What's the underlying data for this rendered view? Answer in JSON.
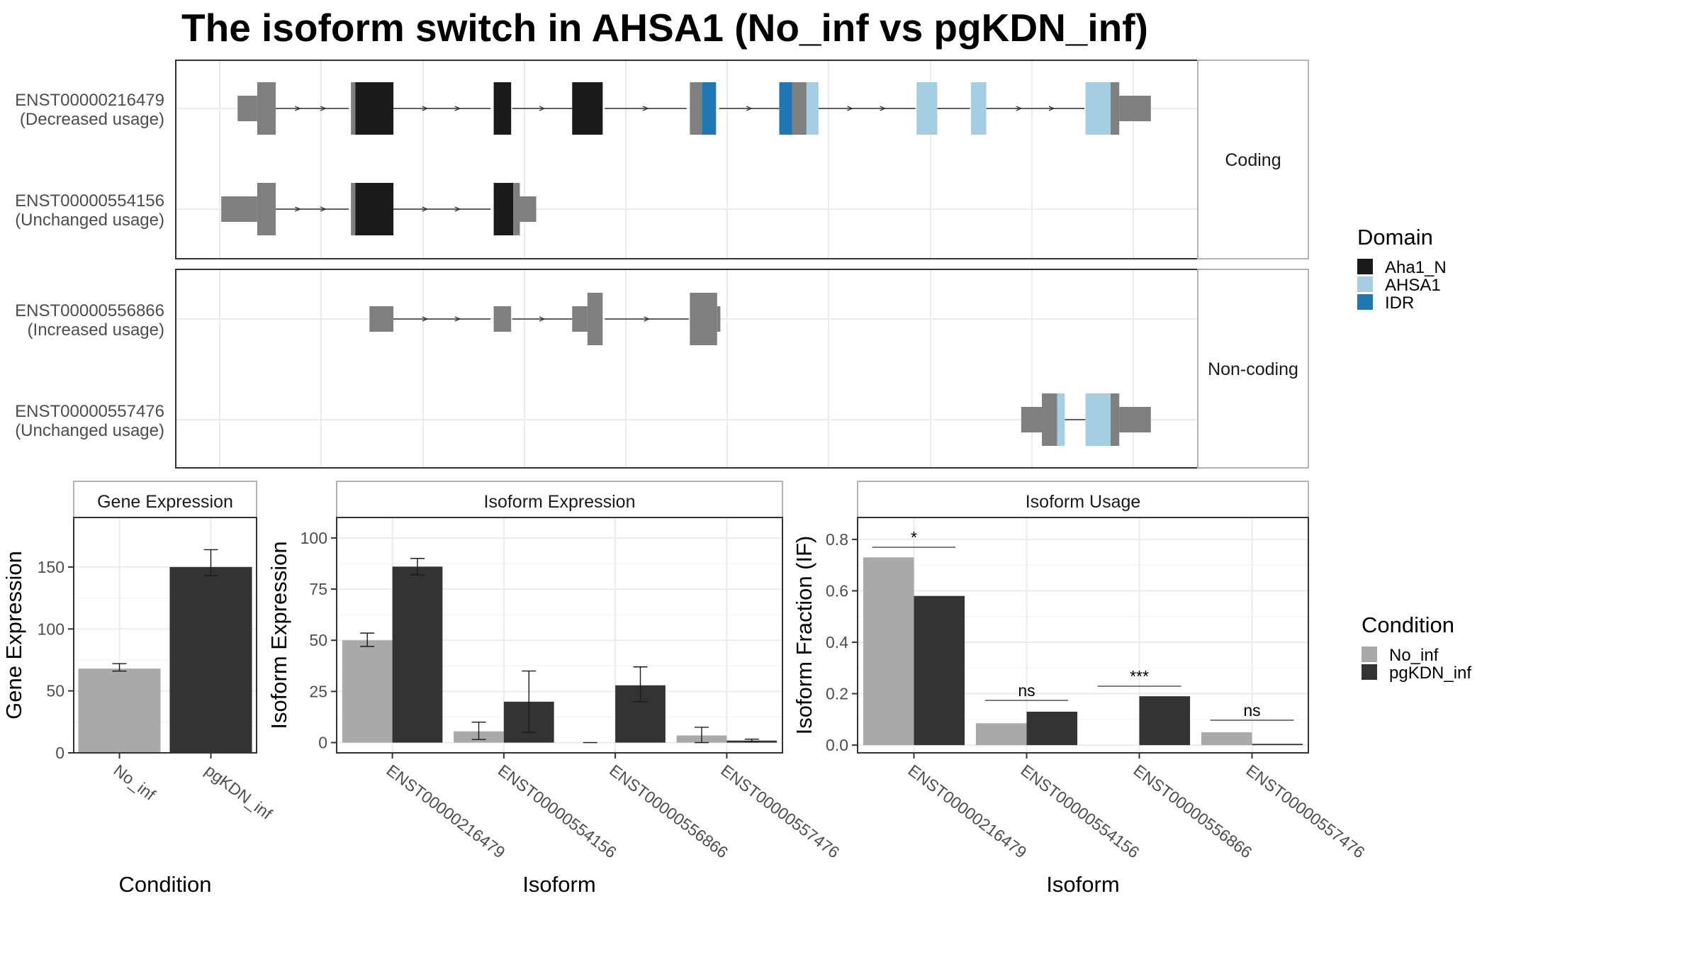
{
  "title": "The isoform switch in AHSA1 (No_inf vs pgKDN_inf)",
  "colors": {
    "Aha1_N": "#1a1a1a",
    "AHSA1": "#a6cee3",
    "IDR": "#1f78b4",
    "no_domain": "#7f7f7f",
    "No_inf": "#a9a9a9",
    "pgKDN_inf": "#333333"
  },
  "structure": {
    "facets": [
      "Coding",
      "Non-coding"
    ],
    "isoform_labels": [
      {
        "id": "ENST00000216479",
        "note": "(Decreased usage)"
      },
      {
        "id": "ENST00000554156",
        "note": "(Unchanged usage)"
      },
      {
        "id": "ENST00000556866",
        "note": "(Increased usage)"
      },
      {
        "id": "ENST00000557476",
        "note": "(Unchanged usage)"
      }
    ]
  },
  "legends": {
    "domain": {
      "title": "Domain",
      "items": [
        "Aha1_N",
        "AHSA1",
        "IDR"
      ]
    },
    "condition": {
      "title": "Condition",
      "items": [
        "No_inf",
        "pgKDN_inf"
      ]
    }
  },
  "chart_data": [
    {
      "type": "bar",
      "panel": "Gene Expression",
      "categories": [
        "No_inf",
        "pgKDN_inf"
      ],
      "values": [
        68,
        150
      ],
      "error": [
        [
          66,
          72
        ],
        [
          143,
          164
        ]
      ],
      "ylim": [
        0,
        190
      ],
      "yticks": [
        0,
        50,
        100,
        150
      ],
      "xlabel": "Condition",
      "ylabel": "Gene Expression"
    },
    {
      "type": "bar",
      "panel": "Isoform Expression",
      "categories": [
        "ENST00000216479",
        "ENST00000554156",
        "ENST00000556866",
        "ENST00000557476"
      ],
      "series": [
        {
          "name": "No_inf",
          "values": [
            50,
            5.5,
            0,
            3.5
          ],
          "error": [
            [
              47,
              53.5
            ],
            [
              1.5,
              10
            ],
            [
              0,
              0
            ],
            [
              0,
              7.5
            ]
          ]
        },
        {
          "name": "pgKDN_inf",
          "values": [
            86,
            20,
            28,
            1
          ],
          "error": [
            [
              82,
              90
            ],
            [
              5,
              35
            ],
            [
              20,
              37
            ],
            [
              0.3,
              1.7
            ]
          ]
        }
      ],
      "ylim": [
        -5,
        110
      ],
      "yticks": [
        0,
        25,
        50,
        75,
        100
      ],
      "xlabel": "Isoform",
      "ylabel": "Isoform Expression"
    },
    {
      "type": "bar",
      "panel": "Isoform Usage",
      "categories": [
        "ENST00000216479",
        "ENST00000554156",
        "ENST00000556866",
        "ENST00000557476"
      ],
      "series": [
        {
          "name": "No_inf",
          "values": [
            0.73,
            0.085,
            0,
            0.05
          ]
        },
        {
          "name": "pgKDN_inf",
          "values": [
            0.58,
            0.13,
            0.19,
            0.005
          ]
        }
      ],
      "significance": [
        "*",
        "ns",
        "***",
        "ns"
      ],
      "ylim": [
        -0.03,
        0.885
      ],
      "yticks": [
        "0.0",
        "0.2",
        "0.4",
        "0.6",
        "0.8"
      ],
      "xlabel": "Isoform",
      "ylabel": "Isoform Fraction (IF)"
    }
  ]
}
